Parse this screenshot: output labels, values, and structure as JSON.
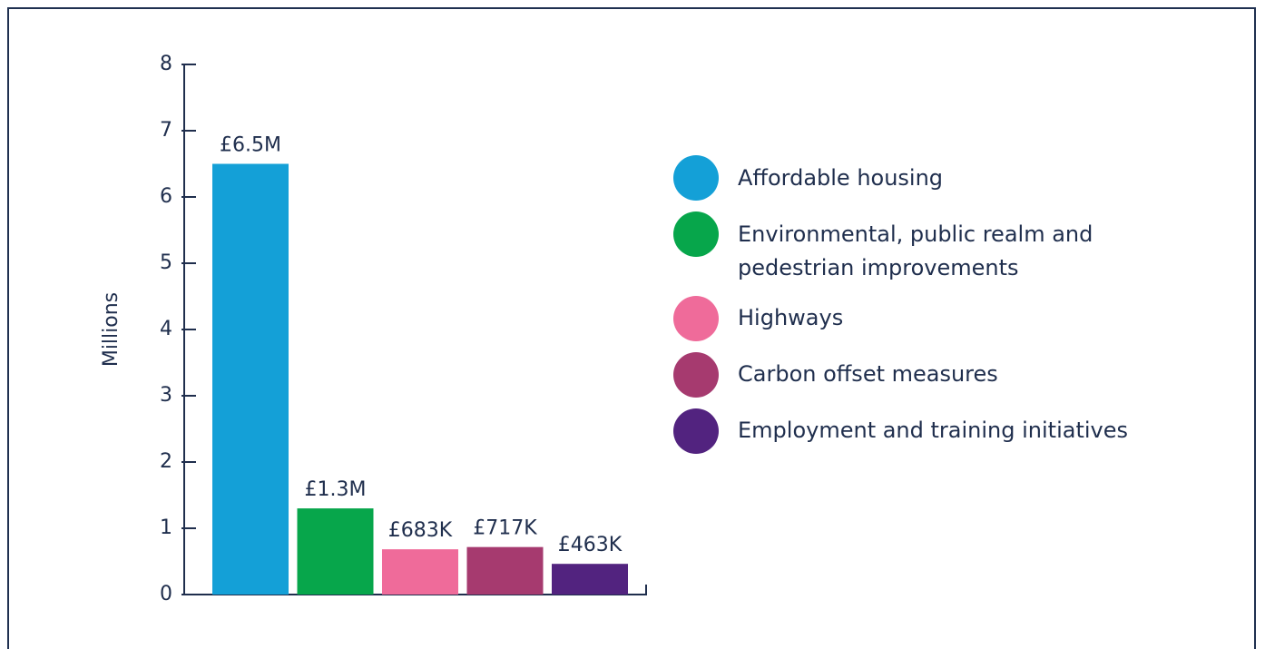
{
  "chart_data": {
    "type": "bar",
    "ylabel": "Millions",
    "categories": [
      "Affordable housing",
      "Environmental, public realm and pedestrian improvements",
      "Highways",
      "Carbon offset measures",
      "Employment and training initiatives"
    ],
    "values": [
      6.5,
      1.3,
      0.683,
      0.717,
      0.463
    ],
    "value_labels": [
      "£6.5M",
      "£1.3M",
      "£683K",
      "£717K",
      "£463K"
    ],
    "colors": [
      "#14a0d7",
      "#07a64b",
      "#ef6b9a",
      "#a63a6f",
      "#52237f"
    ],
    "ylim": [
      0,
      8
    ],
    "yticks": [
      0,
      1,
      2,
      3,
      4,
      5,
      6,
      7,
      8
    ],
    "legend": "right"
  }
}
